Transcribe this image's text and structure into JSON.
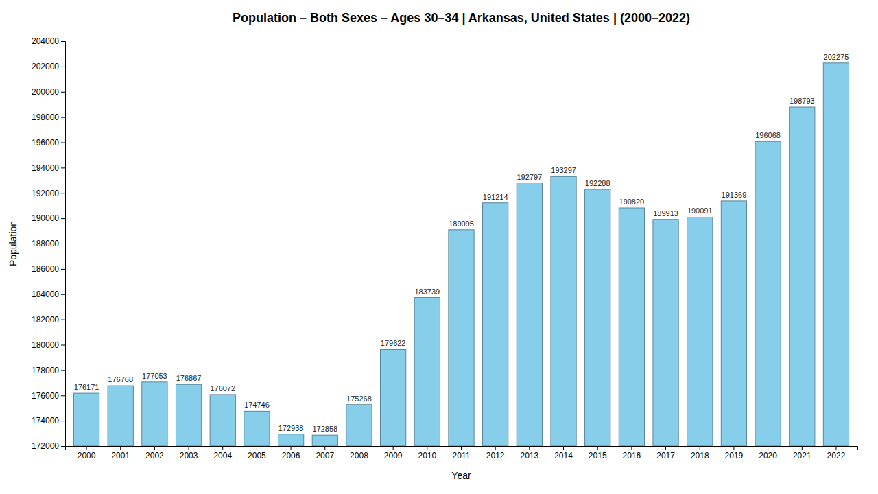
{
  "chart_data": {
    "type": "bar",
    "title": "Population – Both Sexes – Ages 30–34 | Arkansas, United States |   (2000–2022)",
    "x_label": "Year",
    "y_label": "Population",
    "categories": [
      "2000",
      "2001",
      "2002",
      "2003",
      "2004",
      "2005",
      "2006",
      "2007",
      "2008",
      "2009",
      "2010",
      "2011",
      "2012",
      "2013",
      "2014",
      "2015",
      "2016",
      "2017",
      "2018",
      "2019",
      "2020",
      "2021",
      "2022"
    ],
    "values": [
      176171,
      176768,
      177053,
      176867,
      176072,
      174746,
      172938,
      172858,
      175268,
      179622,
      183739,
      189095,
      191214,
      192797,
      193297,
      192288,
      190820,
      189913,
      190091,
      191369,
      196068,
      198793,
      202275
    ],
    "color": "#87CEEB",
    "ylim": [
      172000,
      204000
    ],
    "yticks": [
      172000,
      174000,
      176000,
      178000,
      180000,
      182000,
      184000,
      186000,
      188000,
      190000,
      192000,
      194000,
      196000,
      198000,
      200000,
      202000,
      204000
    ],
    "grid": false,
    "data_labels": true
  }
}
